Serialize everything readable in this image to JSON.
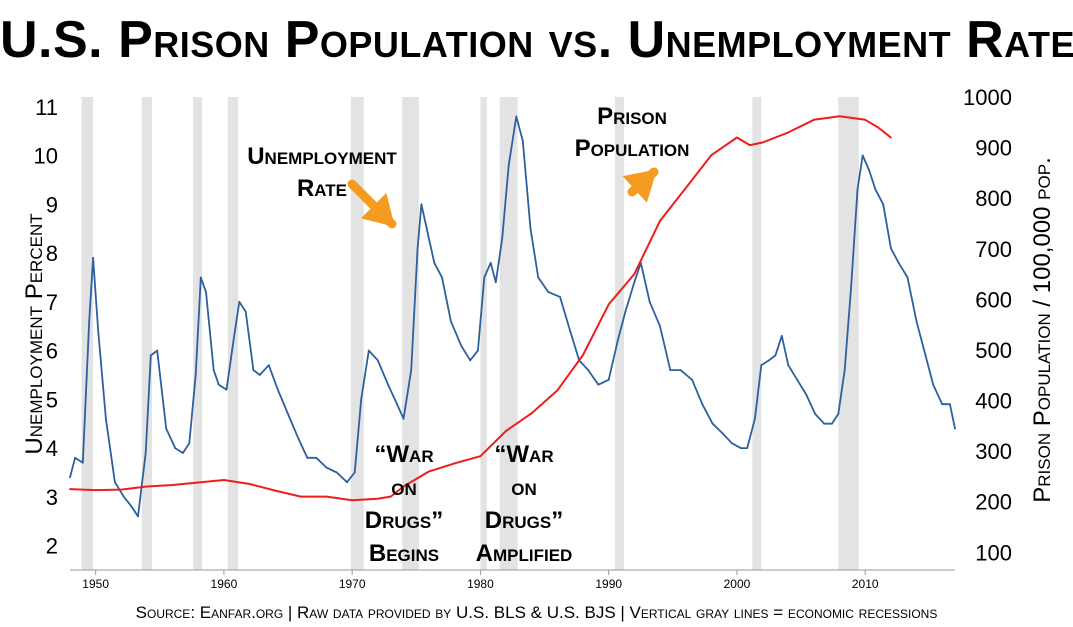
{
  "title": "U.S. Prison Population vs. Unemployment Rate",
  "footer": "Source: Eanfar.org | Raw data provided by U.S. BLS & U.S. BJS | Vertical gray lines = economic recessions",
  "chart_data": {
    "type": "line",
    "x_range": [
      1948,
      2017
    ],
    "x_ticks": [
      1950,
      1960,
      1970,
      1980,
      1990,
      2000,
      2010
    ],
    "grid": false,
    "y_left": {
      "label": "Unemployment Percent",
      "range": [
        1.5,
        11.2
      ],
      "ticks": [
        2,
        3,
        4,
        5,
        6,
        7,
        8,
        9,
        10,
        11
      ]
    },
    "y_right": {
      "label": "Prison Population / 100,000 pop.",
      "range": [
        65,
        1000
      ],
      "ticks": [
        100,
        200,
        300,
        400,
        500,
        600,
        700,
        800,
        900,
        1000
      ]
    },
    "recessions": [
      [
        1948.9,
        1949.8
      ],
      [
        1953.6,
        1954.4
      ],
      [
        1957.6,
        1958.3
      ],
      [
        1960.3,
        1961.1
      ],
      [
        1969.9,
        1970.9
      ],
      [
        1973.9,
        1975.2
      ],
      [
        1980.0,
        1980.5
      ],
      [
        1981.5,
        1982.9
      ],
      [
        1990.5,
        1991.2
      ],
      [
        2001.2,
        2001.9
      ],
      [
        2007.9,
        2009.5
      ]
    ],
    "recession_color": "#e3e3e3",
    "series": [
      {
        "axis": "left",
        "color": "#2e5f9e",
        "x": [
          1948.0,
          1948.4,
          1949.0,
          1949.5,
          1949.8,
          1950.2,
          1950.8,
          1951.5,
          1952.2,
          1952.8,
          1953.3,
          1953.9,
          1954.3,
          1954.8,
          1955.5,
          1956.2,
          1956.8,
          1957.3,
          1957.8,
          1958.2,
          1958.6,
          1959.2,
          1959.6,
          1960.2,
          1960.8,
          1961.2,
          1961.7,
          1962.3,
          1962.8,
          1963.5,
          1964.2,
          1965.0,
          1965.8,
          1966.5,
          1967.2,
          1968.0,
          1968.8,
          1969.6,
          1970.2,
          1970.7,
          1971.3,
          1972.0,
          1972.8,
          1973.5,
          1974.0,
          1974.6,
          1975.1,
          1975.4,
          1975.9,
          1976.4,
          1977.0,
          1977.7,
          1978.5,
          1979.2,
          1979.8,
          1980.3,
          1980.8,
          1981.2,
          1981.7,
          1982.2,
          1982.8,
          1983.3,
          1983.9,
          1984.5,
          1985.3,
          1986.2,
          1987.0,
          1987.7,
          1988.4,
          1989.2,
          1990.0,
          1990.7,
          1991.3,
          1992.0,
          1992.5,
          1993.2,
          1994.0,
          1994.8,
          1995.6,
          1996.5,
          1997.3,
          1998.1,
          1998.9,
          1999.6,
          2000.3,
          2000.8,
          2001.4,
          2001.9,
          2002.5,
          2003.0,
          2003.5,
          2004.0,
          2004.7,
          2005.4,
          2006.1,
          2006.8,
          2007.4,
          2007.9,
          2008.4,
          2008.9,
          2009.4,
          2009.8,
          2010.3,
          2010.8,
          2011.4,
          2012.0,
          2012.6,
          2013.3,
          2014.0,
          2014.7,
          2015.3,
          2016.0,
          2016.6,
          2017.0
        ],
        "values": [
          3.4,
          3.8,
          3.7,
          6.6,
          7.9,
          6.4,
          4.6,
          3.3,
          3.0,
          2.8,
          2.6,
          3.9,
          5.9,
          6.0,
          4.4,
          4.0,
          3.9,
          4.1,
          5.5,
          7.5,
          7.2,
          5.6,
          5.3,
          5.2,
          6.3,
          7.0,
          6.8,
          5.6,
          5.5,
          5.7,
          5.2,
          4.7,
          4.2,
          3.8,
          3.8,
          3.6,
          3.5,
          3.3,
          3.5,
          5.0,
          6.0,
          5.8,
          5.3,
          4.9,
          4.6,
          5.6,
          8.1,
          9.0,
          8.4,
          7.8,
          7.5,
          6.6,
          6.1,
          5.8,
          6.0,
          7.5,
          7.8,
          7.4,
          8.3,
          9.8,
          10.8,
          10.3,
          8.5,
          7.5,
          7.2,
          7.1,
          6.4,
          5.8,
          5.6,
          5.3,
          5.4,
          6.2,
          6.8,
          7.4,
          7.8,
          7.0,
          6.5,
          5.6,
          5.6,
          5.4,
          4.9,
          4.5,
          4.3,
          4.1,
          4.0,
          4.0,
          4.6,
          5.7,
          5.8,
          5.9,
          6.3,
          5.7,
          5.4,
          5.1,
          4.7,
          4.5,
          4.5,
          4.7,
          5.6,
          7.3,
          9.3,
          10.0,
          9.7,
          9.3,
          9.0,
          8.1,
          7.8,
          7.5,
          6.6,
          5.9,
          5.3,
          4.9,
          4.9,
          4.4
        ]
      },
      {
        "axis": "right",
        "color": "#f01d1d",
        "x": [
          1948,
          1950,
          1952,
          1954,
          1956,
          1958,
          1960,
          1962,
          1964,
          1966,
          1968,
          1970,
          1972,
          1973,
          1974,
          1976,
          1978,
          1980,
          1982,
          1984,
          1986,
          1988,
          1990,
          1992,
          1994,
          1996,
          1998,
          2000,
          2001,
          2002,
          2004,
          2006,
          2008,
          2010,
          2011,
          2012
        ],
        "values": [
          225,
          223,
          224,
          230,
          233,
          238,
          243,
          235,
          222,
          210,
          210,
          203,
          206,
          210,
          230,
          260,
          276,
          290,
          340,
          375,
          420,
          490,
          590,
          650,
          755,
          820,
          885,
          920,
          905,
          910,
          930,
          955,
          962,
          955,
          940,
          920
        ]
      }
    ]
  },
  "annotations": {
    "unemployment": [
      "Unemployment",
      "Rate"
    ],
    "prison": [
      "Prison",
      "Population"
    ],
    "war_begins": [
      "“War",
      "on",
      "Drugs”",
      "Begins"
    ],
    "war_amplified": [
      "“War",
      "on",
      "Drugs”",
      "Amplified"
    ],
    "arrow_color": "#f39c1f"
  }
}
